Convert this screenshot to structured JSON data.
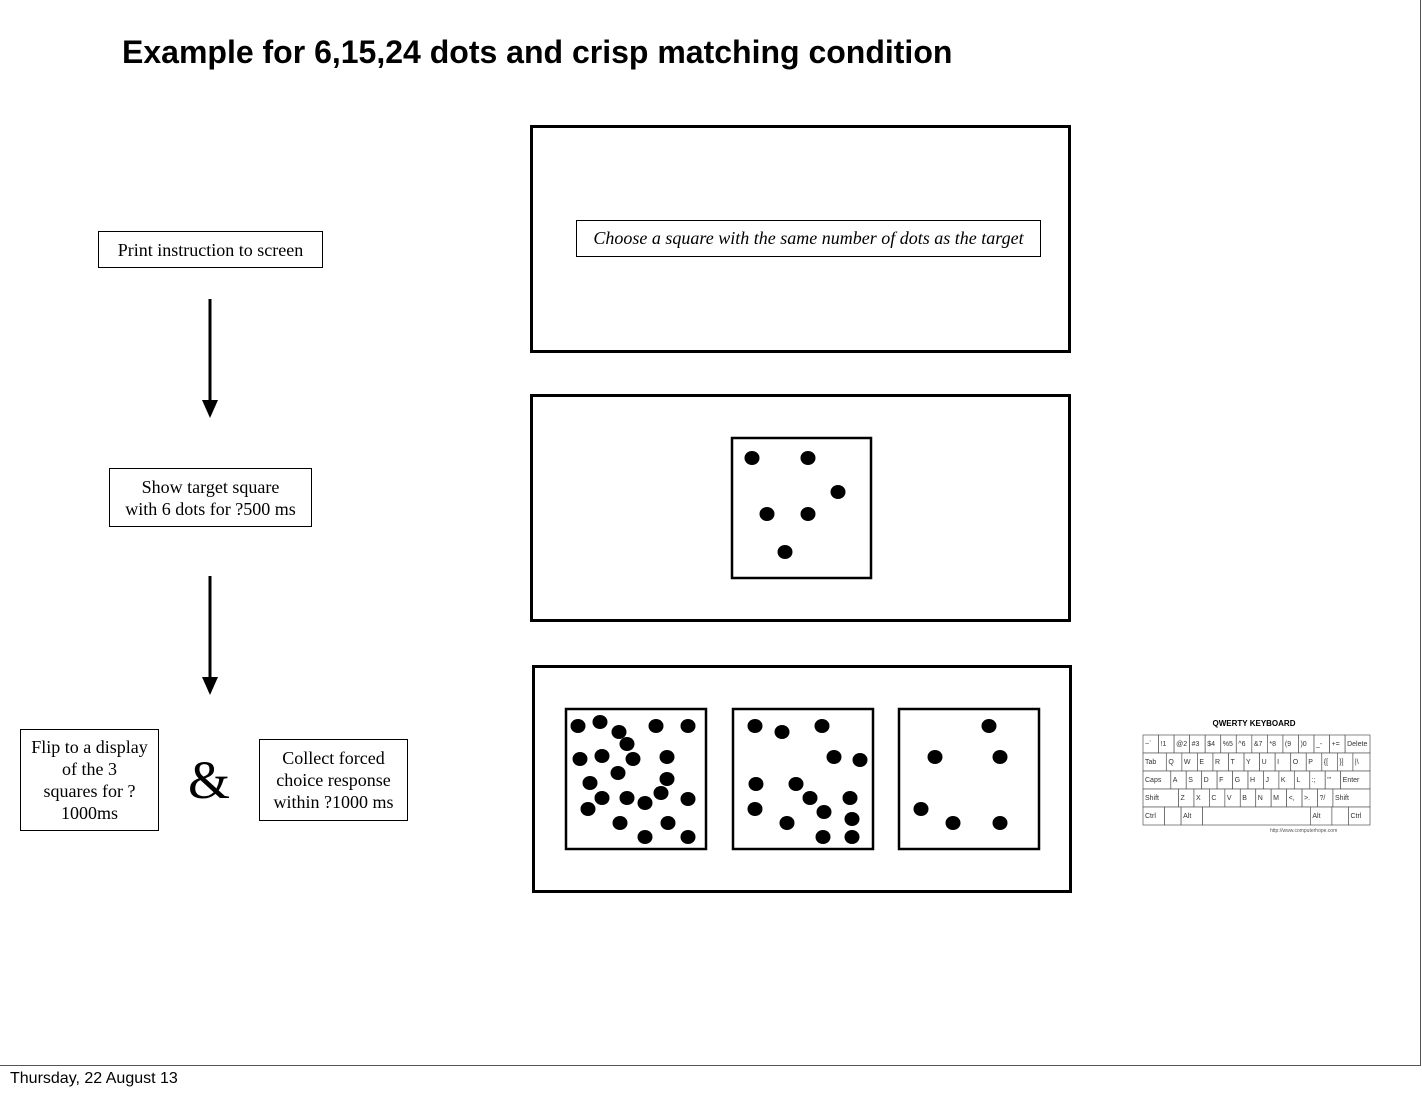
{
  "slide": {
    "title": "Example for 6,15,24 dots and crisp matching condition",
    "footer": "Thursday, 22 August 13"
  },
  "flow": {
    "step1": "Print instruction to screen",
    "step2_line1": "Show target square",
    "step2_line2": "with 6 dots for ?500 ms",
    "step3_line1": "Flip to a display",
    "step3_line2": "of the 3",
    "step3_line3": "squares for ?",
    "step3_line4": "1000ms",
    "ampersand": "&",
    "step4_line1": "Collect forced",
    "step4_line2": "choice response",
    "step4_line3": "within ?1000 ms"
  },
  "screens": {
    "instruction_text": "Choose a square with the same number of dots as the target",
    "target_dots": 6,
    "choice_dots": [
      24,
      15,
      6
    ]
  },
  "keyboard": {
    "title": "QWERTY KEYBOARD",
    "url": "http://www.computerhope.com",
    "rows": [
      [
        "~`",
        "!1",
        "@2",
        "#3",
        "$4",
        "%5",
        "^6",
        "&7",
        "*8",
        "(9",
        ")0",
        "_-",
        "+=",
        "Delete"
      ],
      [
        "Tab",
        "Q",
        "W",
        "E",
        "R",
        "T",
        "Y",
        "U",
        "I",
        "O",
        "P",
        "{[",
        "}]",
        "|\\"
      ],
      [
        "Caps",
        "A",
        "S",
        "D",
        "F",
        "G",
        "H",
        "J",
        "K",
        "L",
        ":;",
        "\"'",
        "Enter"
      ],
      [
        "Shift",
        "Z",
        "X",
        "C",
        "V",
        "B",
        "N",
        "M",
        "<,",
        ">.",
        "?/",
        "Shift"
      ],
      [
        "Ctrl",
        "",
        "Alt",
        "",
        "Alt",
        "",
        "Ctrl"
      ]
    ]
  }
}
